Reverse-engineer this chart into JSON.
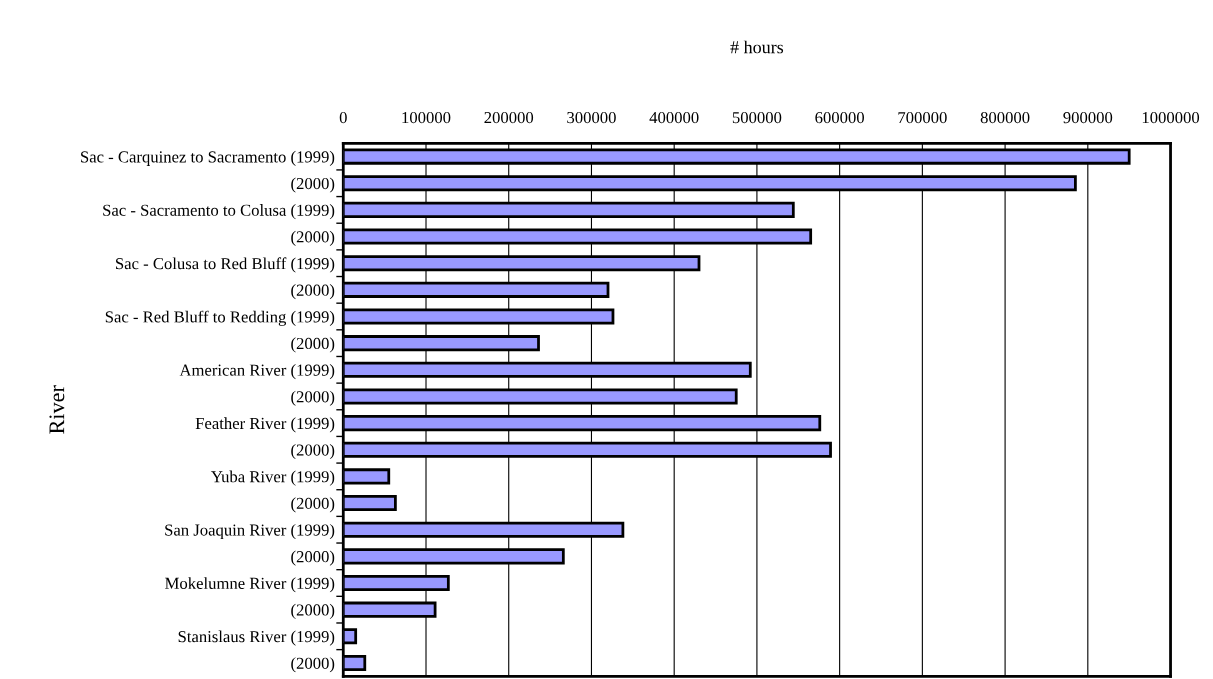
{
  "chart_data": {
    "type": "bar",
    "orientation": "horizontal",
    "xlabel": "# hours",
    "ylabel": "River",
    "categories": [
      "Sac - Carquinez to Sacramento (1999)",
      "(2000)",
      "Sac - Sacramento to Colusa (1999)",
      "(2000)",
      "Sac - Colusa to Red Bluff (1999)",
      "(2000)",
      "Sac - Red Bluff to Redding (1999)",
      "(2000)",
      "American River (1999)",
      "(2000)",
      "Feather River (1999)",
      "(2000)",
      "Yuba River (1999)",
      "(2000)",
      "San Joaquin River (1999)",
      "(2000)",
      "Mokelumne River (1999)",
      "(2000)",
      "Stanislaus River (1999)",
      "(2000)"
    ],
    "values": [
      950000,
      885000,
      544000,
      565000,
      430000,
      320000,
      326000,
      236000,
      492000,
      475000,
      576000,
      589000,
      55000,
      63000,
      338000,
      266000,
      127000,
      111000,
      15000,
      26000
    ],
    "color": "#9999ff",
    "xlim": [
      0,
      1000000
    ],
    "xticks": [
      0,
      100000,
      200000,
      300000,
      400000,
      500000,
      600000,
      700000,
      800000,
      900000,
      1000000
    ],
    "grid": "x"
  }
}
